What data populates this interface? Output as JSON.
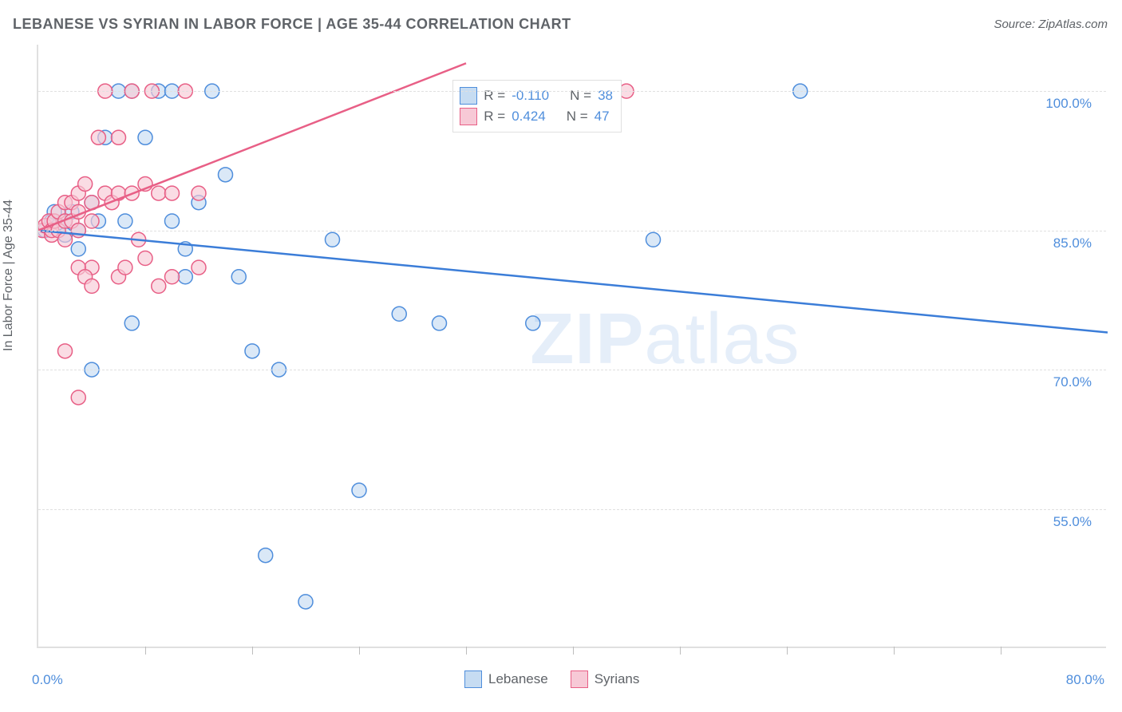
{
  "title": "LEBANESE VS SYRIAN IN LABOR FORCE | AGE 35-44 CORRELATION CHART",
  "source": "Source: ZipAtlas.com",
  "y_axis_label": "In Labor Force | Age 35-44",
  "watermark": {
    "bold": "ZIP",
    "thin": "atlas"
  },
  "chart": {
    "type": "scatter",
    "xlim": [
      0,
      80
    ],
    "ylim": [
      40,
      105
    ],
    "x_origin_label": "0.0%",
    "x_max_label": "80.0%",
    "y_ticks": [
      {
        "value": 55,
        "label": "55.0%"
      },
      {
        "value": 70,
        "label": "70.0%"
      },
      {
        "value": 85,
        "label": "85.0%"
      },
      {
        "value": 100,
        "label": "100.0%"
      }
    ],
    "x_tick_positions": [
      8,
      16,
      24,
      32,
      40,
      48,
      56,
      64,
      72
    ],
    "grid_color": "#e0e0e0",
    "background_color": "#ffffff",
    "marker_radius": 9,
    "marker_stroke_width": 1.5,
    "line_width": 2.5,
    "series": [
      {
        "id": "lebanese",
        "name": "Lebanese",
        "fill": "#c6dcf2",
        "stroke": "#4f8edc",
        "line_color": "#3b7dd8",
        "R": "-0.110",
        "N": "38",
        "trend": {
          "x1": 0,
          "y1": 85,
          "x2": 80,
          "y2": 74
        },
        "points": [
          [
            0.5,
            85
          ],
          [
            1,
            86
          ],
          [
            1.2,
            87
          ],
          [
            1.5,
            85.5
          ],
          [
            2,
            86
          ],
          [
            2,
            84.5
          ],
          [
            2.5,
            87
          ],
          [
            3,
            85
          ],
          [
            3,
            83
          ],
          [
            4,
            88
          ],
          [
            4.5,
            86
          ],
          [
            5,
            95
          ],
          [
            6,
            100
          ],
          [
            6.5,
            86
          ],
          [
            7,
            100
          ],
          [
            8,
            95
          ],
          [
            9,
            100
          ],
          [
            10,
            100
          ],
          [
            10,
            86
          ],
          [
            11,
            83
          ],
          [
            11,
            80
          ],
          [
            4,
            70
          ],
          [
            7,
            75
          ],
          [
            12,
            88
          ],
          [
            13,
            100
          ],
          [
            14,
            91
          ],
          [
            15,
            80
          ],
          [
            16,
            72
          ],
          [
            17,
            50
          ],
          [
            18,
            70
          ],
          [
            20,
            45
          ],
          [
            22,
            84
          ],
          [
            24,
            57
          ],
          [
            27,
            76
          ],
          [
            30,
            75
          ],
          [
            37,
            75
          ],
          [
            46,
            84
          ],
          [
            57,
            100
          ]
        ]
      },
      {
        "id": "syrians",
        "name": "Syrians",
        "fill": "#f7c9d6",
        "stroke": "#e85f86",
        "line_color": "#e85f86",
        "R": "0.424",
        "N": "47",
        "trend": {
          "x1": 0,
          "y1": 85,
          "x2": 32,
          "y2": 103
        },
        "points": [
          [
            0.3,
            85
          ],
          [
            0.5,
            85.5
          ],
          [
            0.8,
            86
          ],
          [
            1,
            84.5
          ],
          [
            1,
            85
          ],
          [
            1.2,
            86
          ],
          [
            1.5,
            85
          ],
          [
            1.5,
            87
          ],
          [
            2,
            86
          ],
          [
            2,
            88
          ],
          [
            2,
            84
          ],
          [
            2.5,
            88
          ],
          [
            2.5,
            86
          ],
          [
            3,
            89
          ],
          [
            3,
            87
          ],
          [
            3,
            85
          ],
          [
            3.5,
            90
          ],
          [
            4,
            88
          ],
          [
            4,
            81
          ],
          [
            4,
            86
          ],
          [
            4.5,
            95
          ],
          [
            5,
            89
          ],
          [
            5,
            100
          ],
          [
            5.5,
            88
          ],
          [
            6,
            89
          ],
          [
            6,
            95
          ],
          [
            6,
            80
          ],
          [
            6.5,
            81
          ],
          [
            7,
            100
          ],
          [
            7,
            89
          ],
          [
            7.5,
            84
          ],
          [
            8,
            90
          ],
          [
            8,
            82
          ],
          [
            8.5,
            100
          ],
          [
            9,
            89
          ],
          [
            9,
            79
          ],
          [
            10,
            89
          ],
          [
            10,
            80
          ],
          [
            11,
            100
          ],
          [
            12,
            81
          ],
          [
            12,
            89
          ],
          [
            3,
            81
          ],
          [
            3.5,
            80
          ],
          [
            2,
            72
          ],
          [
            3,
            67
          ],
          [
            4,
            79
          ],
          [
            44,
            100
          ]
        ]
      }
    ]
  },
  "info_box": {
    "R_label": "R =",
    "N_label": "N ="
  },
  "legend_labels": {
    "lebanese": "Lebanese",
    "syrians": "Syrians"
  }
}
